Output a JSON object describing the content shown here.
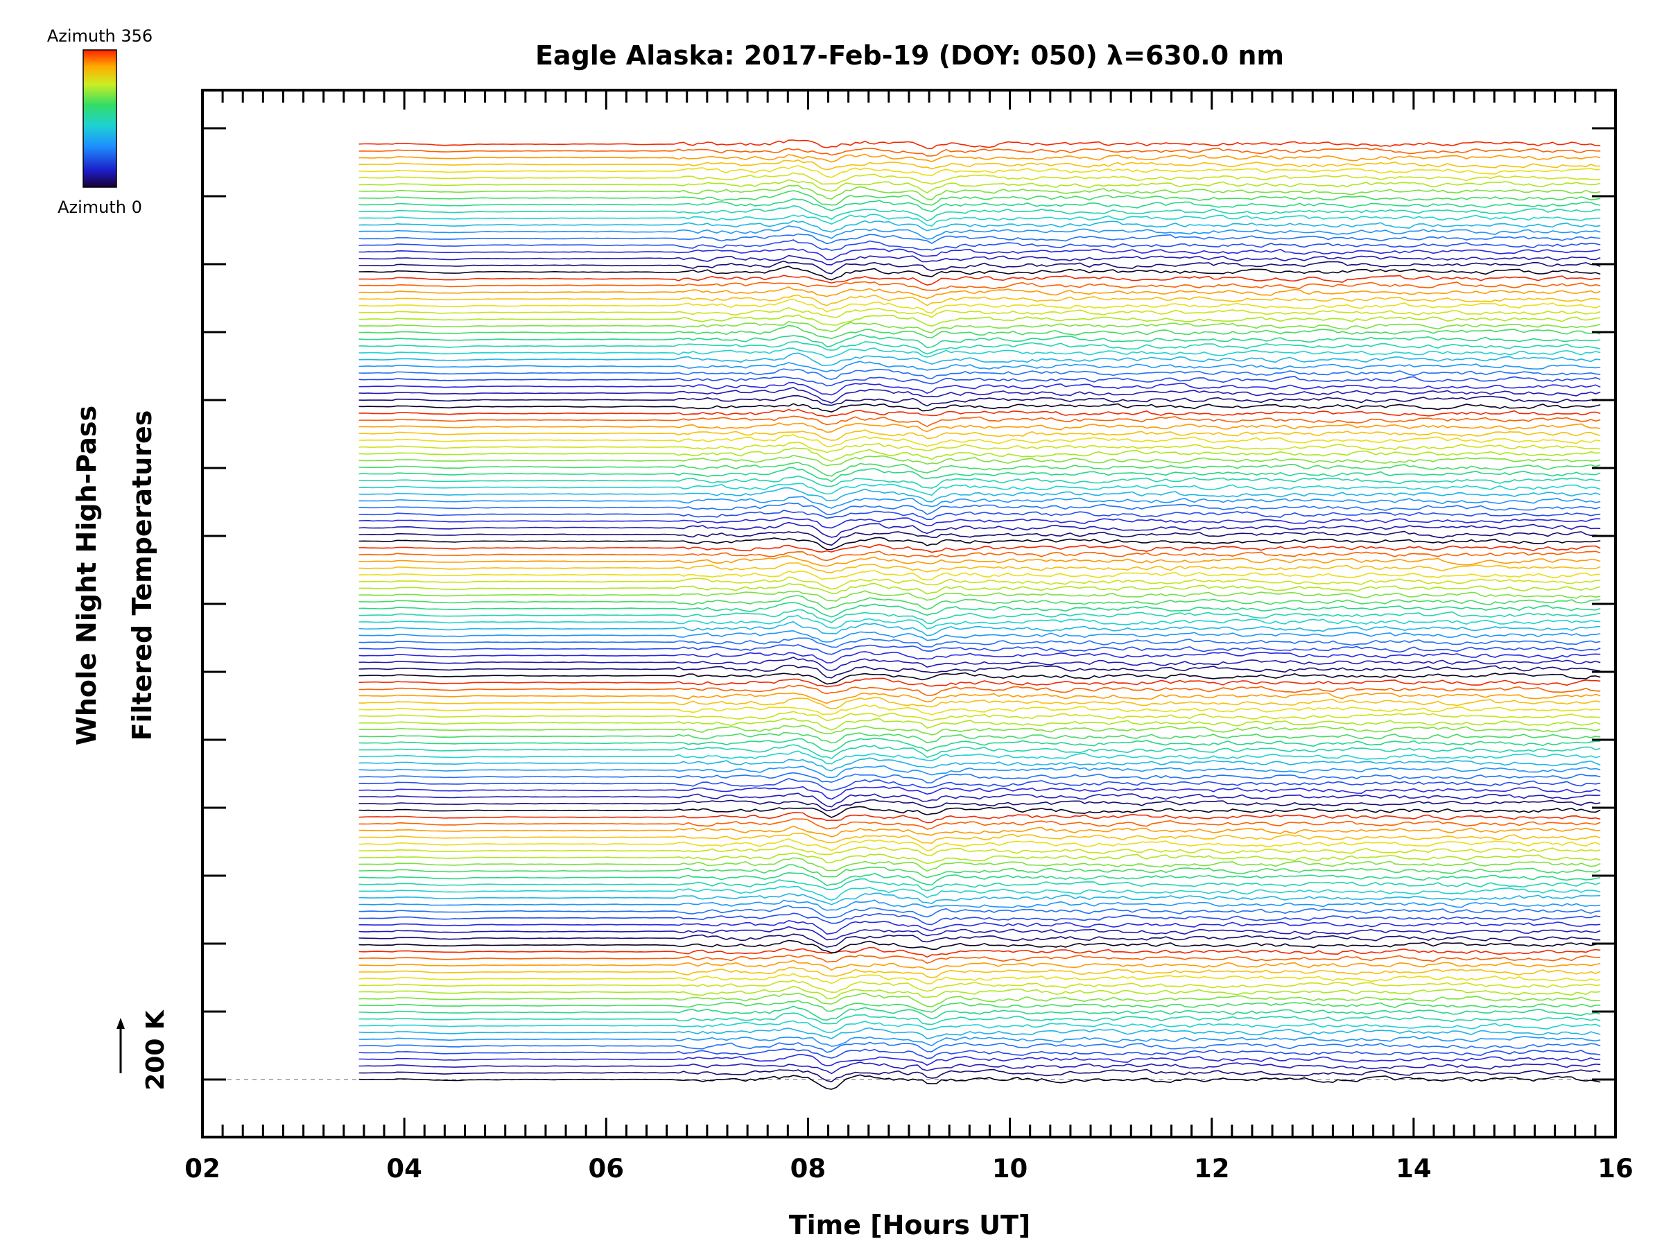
{
  "chart_data": {
    "type": "line",
    "title": "Eagle Alaska: 2017-Feb-19 (DOY: 050) λ=630.0 nm",
    "xlabel": "Time [Hours UT]",
    "ylabel_line1": "Whole Night High-Pass",
    "ylabel_line2": "Filtered Temperatures",
    "xlim": [
      2,
      16
    ],
    "x_ticks": [
      "02",
      "04",
      "06",
      "08",
      "10",
      "12",
      "14",
      "16"
    ],
    "x_tick_values": [
      2,
      4,
      6,
      8,
      10,
      12,
      14,
      16
    ],
    "x_minor_step": 0.2,
    "data_start_hour": 3.55,
    "data_end_hour": 15.85,
    "series_count": 140,
    "scale_bar_label": "200 K",
    "colorbar": {
      "top_label": "Azimuth  356",
      "bottom_label": "Azimuth  0",
      "min": 0,
      "max": 356,
      "colormap": "rainbow"
    },
    "features": [
      {
        "hour": 8.2,
        "note": "strong dip across all traces"
      },
      {
        "hour": 9.2,
        "note": "second dip across all traces"
      },
      {
        "hour": 6.7,
        "note": "onset of variability"
      }
    ],
    "grid": false
  }
}
